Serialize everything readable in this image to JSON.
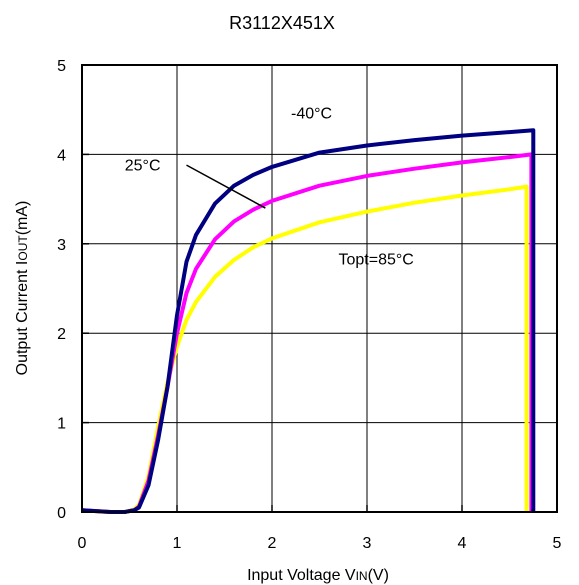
{
  "chart_data": {
    "type": "line",
    "title": "R3112X451X",
    "xlabel_main": "Input Voltage V",
    "xlabel_sub": "IN",
    "xlabel_tail": "(V)",
    "ylabel_main": "Output Current I",
    "ylabel_sub": "OUT",
    "ylabel_tail": "(mA)",
    "xlim": [
      0,
      5
    ],
    "ylim": [
      0,
      5
    ],
    "xticks": [
      "0",
      "1",
      "2",
      "3",
      "4",
      "5"
    ],
    "yticks": [
      "0",
      "1",
      "2",
      "3",
      "4",
      "5"
    ],
    "grid": true,
    "series": [
      {
        "name": "-40°C",
        "color": "#000080",
        "x": [
          0,
          0.3,
          0.45,
          0.55,
          0.6,
          0.7,
          0.8,
          0.9,
          1.0,
          1.1,
          1.2,
          1.4,
          1.6,
          1.8,
          2.0,
          2.5,
          3.0,
          3.5,
          4.0,
          4.5,
          4.75,
          4.75
        ],
        "y": [
          0.02,
          0.0,
          0.0,
          0.02,
          0.05,
          0.3,
          0.8,
          1.4,
          2.2,
          2.8,
          3.1,
          3.45,
          3.65,
          3.77,
          3.86,
          4.02,
          4.1,
          4.16,
          4.21,
          4.25,
          4.27,
          0.0
        ]
      },
      {
        "name": "25°C",
        "color": "#ff00ff",
        "x": [
          0,
          0.3,
          0.45,
          0.55,
          0.6,
          0.7,
          0.8,
          0.9,
          1.0,
          1.1,
          1.2,
          1.4,
          1.6,
          1.8,
          2.0,
          2.5,
          3.0,
          3.5,
          4.0,
          4.5,
          4.73,
          4.73
        ],
        "y": [
          0.02,
          0.0,
          0.0,
          0.02,
          0.06,
          0.35,
          0.85,
          1.4,
          2.0,
          2.45,
          2.72,
          3.05,
          3.25,
          3.38,
          3.48,
          3.65,
          3.76,
          3.84,
          3.91,
          3.97,
          4.0,
          0.0
        ]
      },
      {
        "name": "Topt=85°C",
        "color": "#ffff00",
        "x": [
          0,
          0.3,
          0.45,
          0.55,
          0.6,
          0.7,
          0.8,
          0.9,
          1.0,
          1.1,
          1.2,
          1.4,
          1.6,
          1.8,
          2.0,
          2.5,
          3.0,
          3.5,
          4.0,
          4.5,
          4.68,
          4.68
        ],
        "y": [
          0.02,
          0.0,
          0.0,
          0.03,
          0.08,
          0.4,
          0.95,
          1.45,
          1.85,
          2.15,
          2.35,
          2.63,
          2.82,
          2.96,
          3.06,
          3.24,
          3.36,
          3.46,
          3.54,
          3.61,
          3.64,
          0.0
        ]
      }
    ],
    "annotations": [
      {
        "text": "-40°C",
        "x": 2.2,
        "y": 4.4
      },
      {
        "text": "25°C",
        "x": 0.45,
        "y": 3.82
      },
      {
        "text": "Topt=85°C",
        "x": 2.7,
        "y": 2.77
      }
    ],
    "leader_line": {
      "from": [
        1.1,
        3.88
      ],
      "to": [
        1.93,
        3.4
      ]
    }
  }
}
